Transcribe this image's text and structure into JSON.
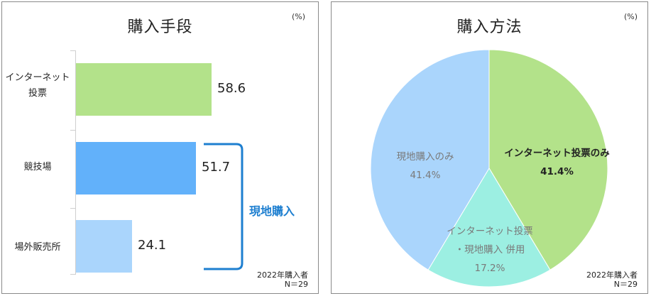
{
  "unit_label": "(%)",
  "footnote": {
    "year_label": "2022年購入者",
    "n_label": "N＝29"
  },
  "chart_data": [
    {
      "type": "bar",
      "title": "購入手段",
      "categories": [
        "インターネット投票",
        "競技場",
        "場外販売所"
      ],
      "category_lines": [
        [
          "インターネット",
          "投票"
        ],
        [
          "競技場"
        ],
        [
          "場外販売所"
        ]
      ],
      "values": [
        58.6,
        51.7,
        24.1
      ],
      "value_labels": [
        "58.6",
        "51.7",
        "24.1"
      ],
      "colors": [
        "#b3e28a",
        "#62b1fa",
        "#aad5fc"
      ],
      "xlim": [
        0,
        100
      ],
      "bracket_label": "現地購入",
      "bracket_color": "#1e7fd0"
    },
    {
      "type": "pie",
      "title": "購入方法",
      "slices": [
        {
          "label": "インターネット投票のみ",
          "value": 41.4,
          "value_label": "41.4%",
          "color": "#b3e28a"
        },
        {
          "label": "インターネット投票・現地購入 併用",
          "label_lines": [
            "インターネット投票",
            "・現地購入 併用"
          ],
          "value": 17.2,
          "value_label": "17.2%",
          "color": "#9cefe2"
        },
        {
          "label": "現地購入のみ",
          "value": 41.4,
          "value_label": "41.4%",
          "color": "#aad5fc"
        }
      ]
    }
  ]
}
